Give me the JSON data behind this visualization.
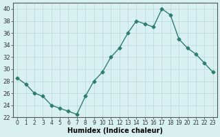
{
  "xlabel": "Humidex (Indice chaleur)",
  "ylabel": "",
  "x_values": [
    0,
    1,
    2,
    3,
    4,
    5,
    6,
    7,
    8,
    9,
    10,
    11,
    12,
    13,
    14,
    15,
    16,
    17,
    18,
    19,
    20,
    21,
    22,
    23
  ],
  "y_values": [
    28.5,
    27.5,
    26,
    25.5,
    24,
    23.5,
    23,
    22.5,
    25.5,
    28,
    29.5,
    32,
    33.5,
    36,
    38,
    37.5,
    37,
    40,
    39,
    35,
    33.5,
    32.5,
    31,
    29.5
  ],
  "line_color": "#2e7d6e",
  "marker_color": "#2e7d6e",
  "bg_color": "#d8f0f0",
  "grid_color": "#b8d8d8",
  "ylim": [
    22,
    41
  ],
  "yticks": [
    22,
    24,
    26,
    28,
    30,
    32,
    34,
    36,
    38,
    40
  ],
  "xlim": [
    -0.5,
    23.5
  ],
  "xticks": [
    0,
    1,
    2,
    3,
    4,
    5,
    6,
    7,
    8,
    9,
    10,
    11,
    12,
    13,
    14,
    15,
    16,
    17,
    18,
    19,
    20,
    21,
    22,
    23
  ]
}
